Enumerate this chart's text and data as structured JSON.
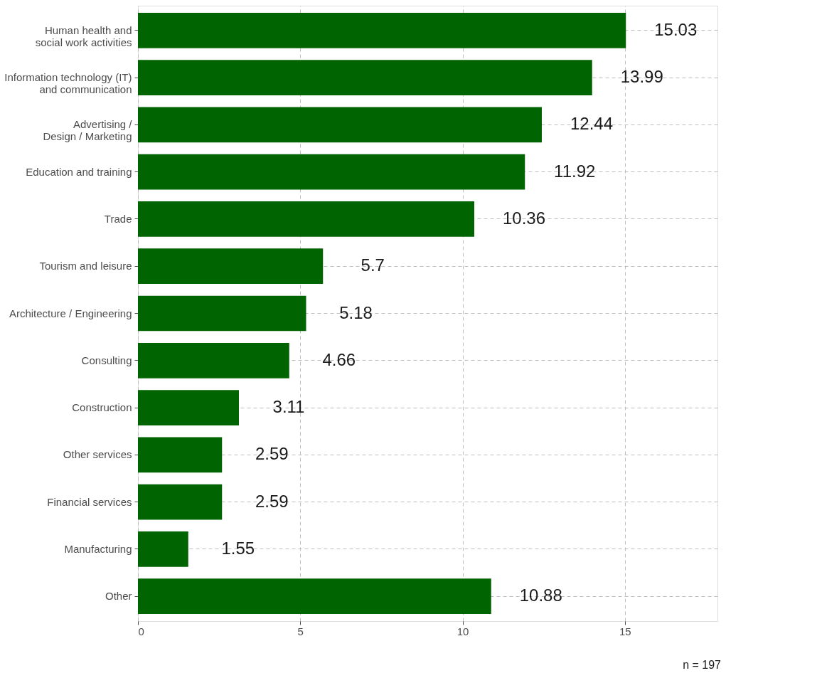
{
  "chart_data": {
    "type": "bar",
    "orientation": "horizontal",
    "categories": [
      "Human health and\nsocial work activities",
      "Information technology (IT)\nand communication",
      "Advertising /\nDesign / Marketing",
      "Education and training",
      "Trade",
      "Tourism and leisure",
      "Architecture / Engineering",
      "Consulting",
      "Construction",
      "Other services",
      "Financial services",
      "Manufacturing",
      "Other"
    ],
    "values": [
      15.03,
      13.99,
      12.44,
      11.92,
      10.36,
      5.7,
      5.18,
      4.66,
      3.11,
      2.59,
      2.59,
      1.55,
      10.88
    ],
    "color": "#006400",
    "xlim": [
      0,
      17.85
    ],
    "xticks": [
      0,
      5,
      10,
      15
    ],
    "grid": true,
    "data_labels": true,
    "annotations": [
      "n = 197"
    ]
  }
}
